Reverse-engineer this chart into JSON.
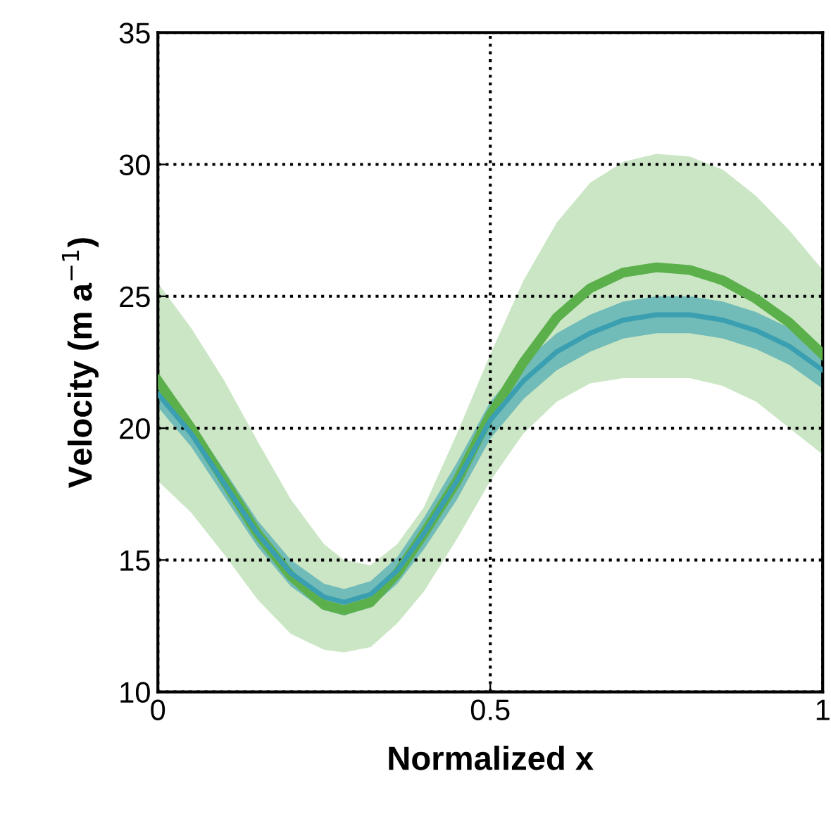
{
  "chart_data": {
    "type": "line",
    "xlabel": "Normalized x",
    "ylabel": "Velocity (m a$^{−1}$)",
    "x": [
      0,
      0.05,
      0.1,
      0.15,
      0.2,
      0.25,
      0.28,
      0.32,
      0.36,
      0.4,
      0.45,
      0.5,
      0.55,
      0.6,
      0.65,
      0.7,
      0.75,
      0.8,
      0.85,
      0.9,
      0.95,
      1
    ],
    "series": [
      {
        "color": "#5cb04c",
        "values": [
          21.8,
          20.0,
          18.0,
          16.0,
          14.4,
          13.3,
          13.1,
          13.4,
          14.5,
          16.0,
          18.0,
          20.5,
          22.5,
          24.2,
          25.3,
          25.9,
          26.1,
          26.0,
          25.6,
          24.9,
          24.0,
          22.8
        ],
        "lower": [
          18.0,
          16.8,
          15.2,
          13.5,
          12.2,
          11.6,
          11.5,
          11.7,
          12.6,
          13.8,
          15.8,
          18.0,
          19.8,
          21.0,
          21.7,
          21.9,
          21.9,
          21.9,
          21.6,
          21.0,
          20.0,
          19.0
        ],
        "upper": [
          25.5,
          23.8,
          21.8,
          19.5,
          17.3,
          15.6,
          15.0,
          14.8,
          15.6,
          17.0,
          19.8,
          22.8,
          25.6,
          27.8,
          29.3,
          30.1,
          30.4,
          30.3,
          29.8,
          28.8,
          27.5,
          26.0
        ]
      },
      {
        "color": "#3a9fb0",
        "values": [
          21.3,
          19.8,
          17.9,
          16.0,
          14.5,
          13.6,
          13.4,
          13.7,
          14.6,
          16.0,
          18.0,
          20.3,
          21.8,
          22.9,
          23.6,
          24.1,
          24.3,
          24.3,
          24.1,
          23.7,
          23.1,
          22.2
        ],
        "lower": [
          20.8,
          19.3,
          17.4,
          15.5,
          14.0,
          13.1,
          12.9,
          13.2,
          14.1,
          15.4,
          17.3,
          19.6,
          21.1,
          22.2,
          22.9,
          23.4,
          23.6,
          23.6,
          23.4,
          23.0,
          22.4,
          21.5
        ],
        "upper": [
          21.8,
          20.3,
          18.4,
          16.5,
          15.0,
          14.1,
          13.9,
          14.2,
          15.1,
          16.6,
          18.7,
          21.0,
          22.5,
          23.6,
          24.3,
          24.8,
          25.0,
          25.0,
          24.8,
          24.4,
          23.8,
          22.9
        ]
      }
    ],
    "xlim": [
      0,
      1
    ],
    "ylim": [
      10,
      35
    ],
    "xticks": [
      0,
      0.5,
      1
    ],
    "yticks": [
      10,
      15,
      20,
      25,
      30,
      35
    ],
    "grid": true,
    "line_style": "solid",
    "marker": "none"
  }
}
